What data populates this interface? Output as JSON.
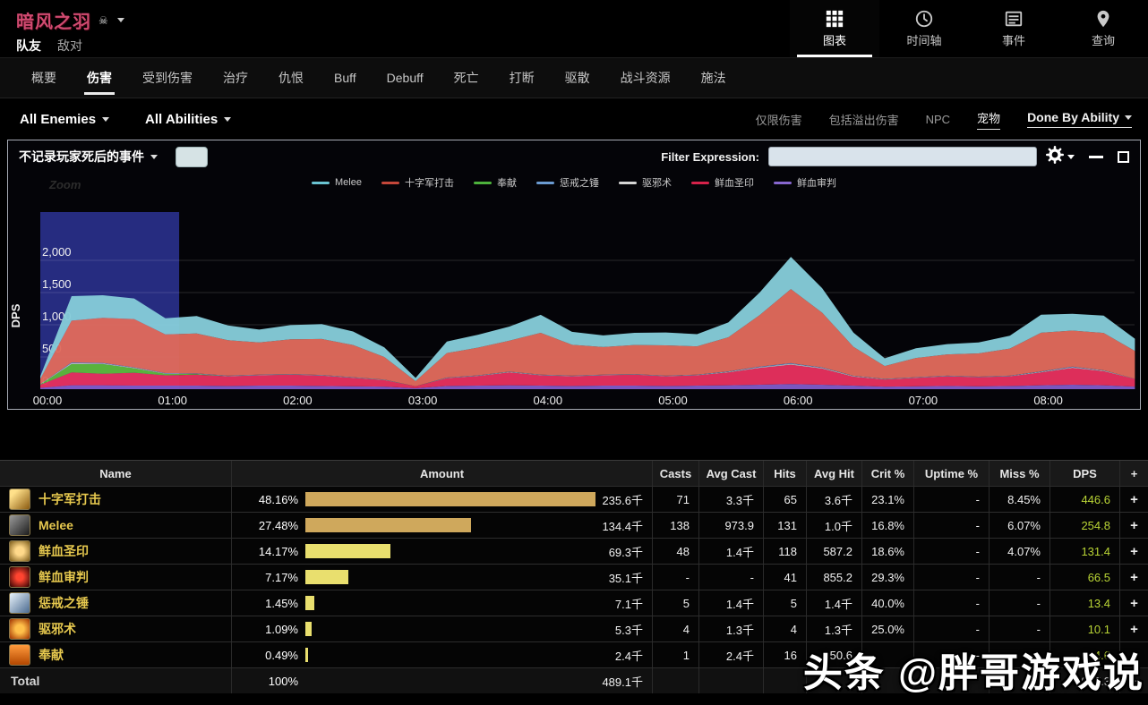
{
  "header": {
    "title": "暗风之羽",
    "kill_marker": "☠",
    "subnav": [
      {
        "label": "队友",
        "active": true
      },
      {
        "label": "敌对",
        "active": false
      }
    ],
    "nav": [
      {
        "label": "图表",
        "active": true
      },
      {
        "label": "时间轴",
        "active": false
      },
      {
        "label": "事件",
        "active": false
      },
      {
        "label": "查询",
        "active": false
      }
    ]
  },
  "tabs": [
    "概要",
    "伤害",
    "受到伤害",
    "治疗",
    "仇恨",
    "Buff",
    "Debuff",
    "死亡",
    "打断",
    "驱散",
    "战斗资源",
    "施法"
  ],
  "active_tab": "伤害",
  "ability_filters": {
    "enemies_dropdown": "All Enemies",
    "abilities_dropdown": "All Abilities",
    "links": [
      {
        "label": "仅限伤害",
        "active": false,
        "caret": false
      },
      {
        "label": "包括溢出伤害",
        "active": false,
        "caret": false
      },
      {
        "label": "NPC",
        "active": false,
        "caret": false
      },
      {
        "label": "宠物",
        "active": true,
        "caret": false
      },
      {
        "label": "Done By Ability",
        "active": true,
        "caret": true
      }
    ]
  },
  "panel": {
    "events_dropdown": "不记录玩家死后的事件",
    "filter_label": "Filter Expression:",
    "filter_value": "",
    "zoom_hint": "Zoom"
  },
  "chart_data": {
    "type": "area",
    "stacked": true,
    "ylabel": "DPS",
    "x_ticks": [
      "00:00",
      "01:00",
      "02:00",
      "03:00",
      "04:00",
      "05:00",
      "06:00",
      "07:00",
      "08:00"
    ],
    "y_tick_values": [
      0,
      500,
      1000,
      1500,
      2000
    ],
    "y_tick_labels": [
      "0",
      "500",
      "1,000",
      "1,500",
      "2,000"
    ],
    "ylim": [
      0,
      2500
    ],
    "grid": true,
    "legend_position": "top-center",
    "selection_region": {
      "x_start_hour": 0,
      "x_end_hour": 1.11,
      "color": "#262c80"
    },
    "x_hours": [
      0,
      0.25,
      0.5,
      0.75,
      1,
      1.25,
      1.5,
      1.75,
      2,
      2.25,
      2.5,
      2.75,
      3,
      3.25,
      3.5,
      3.75,
      4,
      4.25,
      4.5,
      4.75,
      5,
      5.25,
      5.5,
      5.75,
      6,
      6.25,
      6.5,
      6.75,
      7,
      7.25,
      7.5,
      7.75,
      8,
      8.25,
      8.5,
      8.75
    ],
    "legend": [
      {
        "name": "Melee",
        "color": "#6ac4d2"
      },
      {
        "name": "十字军打击",
        "color": "#c4473a"
      },
      {
        "name": "奉献",
        "color": "#4db23c"
      },
      {
        "name": "惩戒之锤",
        "color": "#6b9bd2"
      },
      {
        "name": "驱邪术",
        "color": "#d6d6d6"
      },
      {
        "name": "鲜血圣印",
        "color": "#d6224a"
      },
      {
        "name": "鲜血审判",
        "color": "#8767cf"
      }
    ],
    "series": [
      {
        "name": "鲜血审判",
        "color": "#7e5bc8",
        "values": [
          20,
          60,
          60,
          55,
          55,
          55,
          50,
          55,
          55,
          50,
          45,
          40,
          15,
          50,
          55,
          60,
          55,
          50,
          55,
          55,
          50,
          55,
          60,
          70,
          80,
          70,
          55,
          40,
          45,
          50,
          45,
          50,
          60,
          70,
          60,
          40
        ]
      },
      {
        "name": "鲜血圣印",
        "color": "#e6305e",
        "values": [
          50,
          200,
          180,
          200,
          160,
          170,
          150,
          160,
          170,
          160,
          130,
          100,
          30,
          120,
          150,
          200,
          160,
          150,
          160,
          170,
          150,
          160,
          200,
          260,
          300,
          250,
          140,
          110,
          130,
          150,
          140,
          150,
          200,
          260,
          220,
          120
        ]
      },
      {
        "name": "奉献",
        "color": "#5cb83a",
        "values": [
          5,
          130,
          150,
          70,
          25,
          10,
          0,
          0,
          0,
          0,
          0,
          0,
          0,
          0,
          0,
          0,
          0,
          0,
          0,
          0,
          0,
          0,
          0,
          0,
          0,
          0,
          0,
          0,
          0,
          0,
          0,
          0,
          0,
          0,
          0,
          0
        ]
      },
      {
        "name": "驱邪术",
        "color": "#cccccc",
        "values": [
          5,
          15,
          10,
          8,
          5,
          5,
          5,
          5,
          5,
          5,
          5,
          5,
          0,
          5,
          5,
          8,
          5,
          5,
          5,
          5,
          5,
          5,
          8,
          10,
          12,
          10,
          8,
          5,
          5,
          5,
          5,
          5,
          8,
          10,
          8,
          3
        ]
      },
      {
        "name": "惩戒之锤",
        "color": "#5f8fd0",
        "values": [
          0,
          10,
          8,
          5,
          5,
          5,
          5,
          5,
          5,
          5,
          5,
          5,
          0,
          5,
          5,
          5,
          5,
          5,
          5,
          5,
          5,
          5,
          8,
          10,
          12,
          8,
          5,
          5,
          5,
          5,
          5,
          5,
          8,
          10,
          5,
          0
        ]
      },
      {
        "name": "十字军打击",
        "color": "#e06a5c",
        "values": [
          80,
          650,
          700,
          750,
          600,
          620,
          550,
          500,
          540,
          560,
          500,
          350,
          80,
          380,
          430,
          480,
          650,
          480,
          430,
          450,
          470,
          440,
          530,
          800,
          1150,
          850,
          450,
          200,
          300,
          330,
          360,
          420,
          600,
          560,
          580,
          430
        ]
      },
      {
        "name": "Melee",
        "color": "#85ccd8",
        "values": [
          40,
          380,
          350,
          320,
          250,
          270,
          230,
          200,
          220,
          230,
          210,
          150,
          50,
          180,
          200,
          220,
          280,
          200,
          180,
          190,
          200,
          190,
          230,
          350,
          500,
          380,
          220,
          120,
          150,
          160,
          170,
          200,
          280,
          260,
          270,
          190
        ]
      }
    ]
  },
  "table": {
    "columns": [
      "Name",
      "Amount",
      "Casts",
      "Avg Cast",
      "Hits",
      "Avg Hit",
      "Crit %",
      "Uptime %",
      "Miss %",
      "DPS",
      "+"
    ],
    "rows": [
      {
        "name": "十字军打击",
        "pct": "48.16%",
        "pct_value": 48.16,
        "amount": "235.6千",
        "casts": "71",
        "avg_cast": "3.3千",
        "hits": "65",
        "avg_hit": "3.6千",
        "crit": "23.1%",
        "uptime": "-",
        "miss": "8.45%",
        "dps": "446.6",
        "bar_color": "#cfa85c",
        "icon_bg": "linear-gradient(135deg,#ffe08a 20%,#8a5a10)"
      },
      {
        "name": "Melee",
        "pct": "27.48%",
        "pct_value": 27.48,
        "amount": "134.4千",
        "casts": "138",
        "avg_cast": "973.9",
        "hits": "131",
        "avg_hit": "1.0千",
        "crit": "16.8%",
        "uptime": "-",
        "miss": "6.07%",
        "dps": "254.8",
        "bar_color": "#cfa85c",
        "icon_bg": "linear-gradient(135deg,#9a9a9a,#1c1c1c)"
      },
      {
        "name": "鲜血圣印",
        "pct": "14.17%",
        "pct_value": 14.17,
        "amount": "69.3千",
        "casts": "48",
        "avg_cast": "1.4千",
        "hits": "118",
        "avg_hit": "587.2",
        "crit": "18.6%",
        "uptime": "-",
        "miss": "4.07%",
        "dps": "131.4",
        "bar_color": "#e9df6e",
        "icon_bg": "radial-gradient(circle,#ffd98a 30%,#7a5a18)"
      },
      {
        "name": "鲜血审判",
        "pct": "7.17%",
        "pct_value": 7.17,
        "amount": "35.1千",
        "casts": "-",
        "avg_cast": "-",
        "hits": "41",
        "avg_hit": "855.2",
        "crit": "29.3%",
        "uptime": "-",
        "miss": "-",
        "dps": "66.5",
        "bar_color": "#e9df6e",
        "icon_bg": "radial-gradient(circle,#ff4430 25%,#2a0000)"
      },
      {
        "name": "惩戒之锤",
        "pct": "1.45%",
        "pct_value": 1.45,
        "amount": "7.1千",
        "casts": "5",
        "avg_cast": "1.4千",
        "hits": "5",
        "avg_hit": "1.4千",
        "crit": "40.0%",
        "uptime": "-",
        "miss": "-",
        "dps": "13.4",
        "bar_color": "#e9df6e",
        "icon_bg": "linear-gradient(135deg,#e8f2fa,#4a6a90)"
      },
      {
        "name": "驱邪术",
        "pct": "1.09%",
        "pct_value": 1.09,
        "amount": "5.3千",
        "casts": "4",
        "avg_cast": "1.3千",
        "hits": "4",
        "avg_hit": "1.3千",
        "crit": "25.0%",
        "uptime": "-",
        "miss": "-",
        "dps": "10.1",
        "bar_color": "#e9df6e",
        "icon_bg": "radial-gradient(circle,#ffc04a 30%,#a03000)"
      },
      {
        "name": "奉献",
        "pct": "0.49%",
        "pct_value": 0.49,
        "amount": "2.4千",
        "casts": "1",
        "avg_cast": "2.4千",
        "hits": "16",
        "avg_hit": "150.6",
        "crit": "",
        "uptime": "-",
        "miss": "-",
        "dps": "4.6",
        "bar_color": "#e9df6e",
        "icon_bg": "linear-gradient(180deg,#ff9a3c,#b34700)"
      },
      {
        "name": "Total",
        "is_total": true,
        "pct": "100%",
        "pct_value": 0,
        "amount": "489.1千",
        "casts": "",
        "avg_cast": "",
        "hits": "",
        "avg_hit": "",
        "crit": "",
        "uptime": "",
        "miss": "-",
        "dps": "927.3",
        "bar_color": "",
        "icon_bg": ""
      }
    ]
  },
  "watermark": "头条 @胖哥游戏说"
}
